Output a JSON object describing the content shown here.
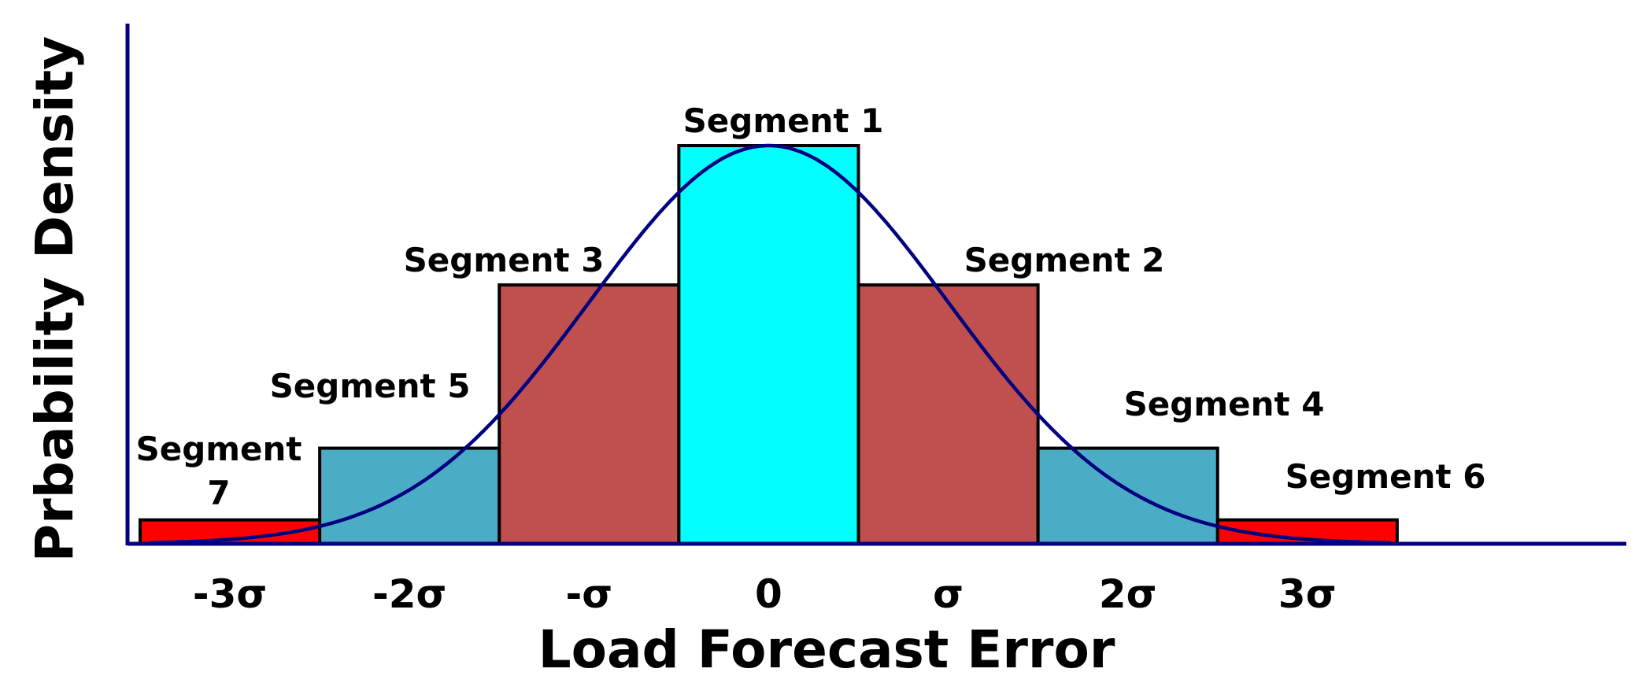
{
  "chart_data": {
    "type": "bar",
    "xlabel": "Load Forecast Error",
    "ylabel": "Prbability Density",
    "ticks": [
      "-3σ",
      "-2σ",
      "-σ",
      "0",
      "σ",
      "2σ",
      "3σ"
    ],
    "xlim": [
      -3.5,
      4.5
    ],
    "ylim": [
      0,
      1.1
    ],
    "segments": [
      {
        "id": "segment-7",
        "label": [
          "Segment",
          "7"
        ],
        "x_start": -3.5,
        "x_end": -2.5,
        "height": 0.06,
        "color": "#ff0000"
      },
      {
        "id": "segment-5",
        "label": [
          "Segment 5"
        ],
        "x_start": -2.5,
        "x_end": -1.5,
        "height": 0.24,
        "color": "#4bacc6"
      },
      {
        "id": "segment-3",
        "label": [
          "Segment 3"
        ],
        "x_start": -1.5,
        "x_end": -0.5,
        "height": 0.65,
        "color": "#c0504d"
      },
      {
        "id": "segment-1",
        "label": [
          "Segment 1"
        ],
        "x_start": -0.5,
        "x_end": 0.5,
        "height": 1.0,
        "color": "#00ffff"
      },
      {
        "id": "segment-2",
        "label": [
          "Segment 2"
        ],
        "x_start": 0.5,
        "x_end": 1.5,
        "height": 0.65,
        "color": "#c0504d"
      },
      {
        "id": "segment-4",
        "label": [
          "Segment 4"
        ],
        "x_start": 1.5,
        "x_end": 2.5,
        "height": 0.24,
        "color": "#4bacc6"
      },
      {
        "id": "segment-6",
        "label": [
          "Segment 6"
        ],
        "x_start": 2.5,
        "x_end": 3.5,
        "height": 0.06,
        "color": "#ff0000"
      }
    ],
    "curve": {
      "type": "normal-density",
      "mean": 0,
      "sigma": 1,
      "peak": 1.0,
      "color": "#000080"
    },
    "axis_color": "#000080"
  }
}
